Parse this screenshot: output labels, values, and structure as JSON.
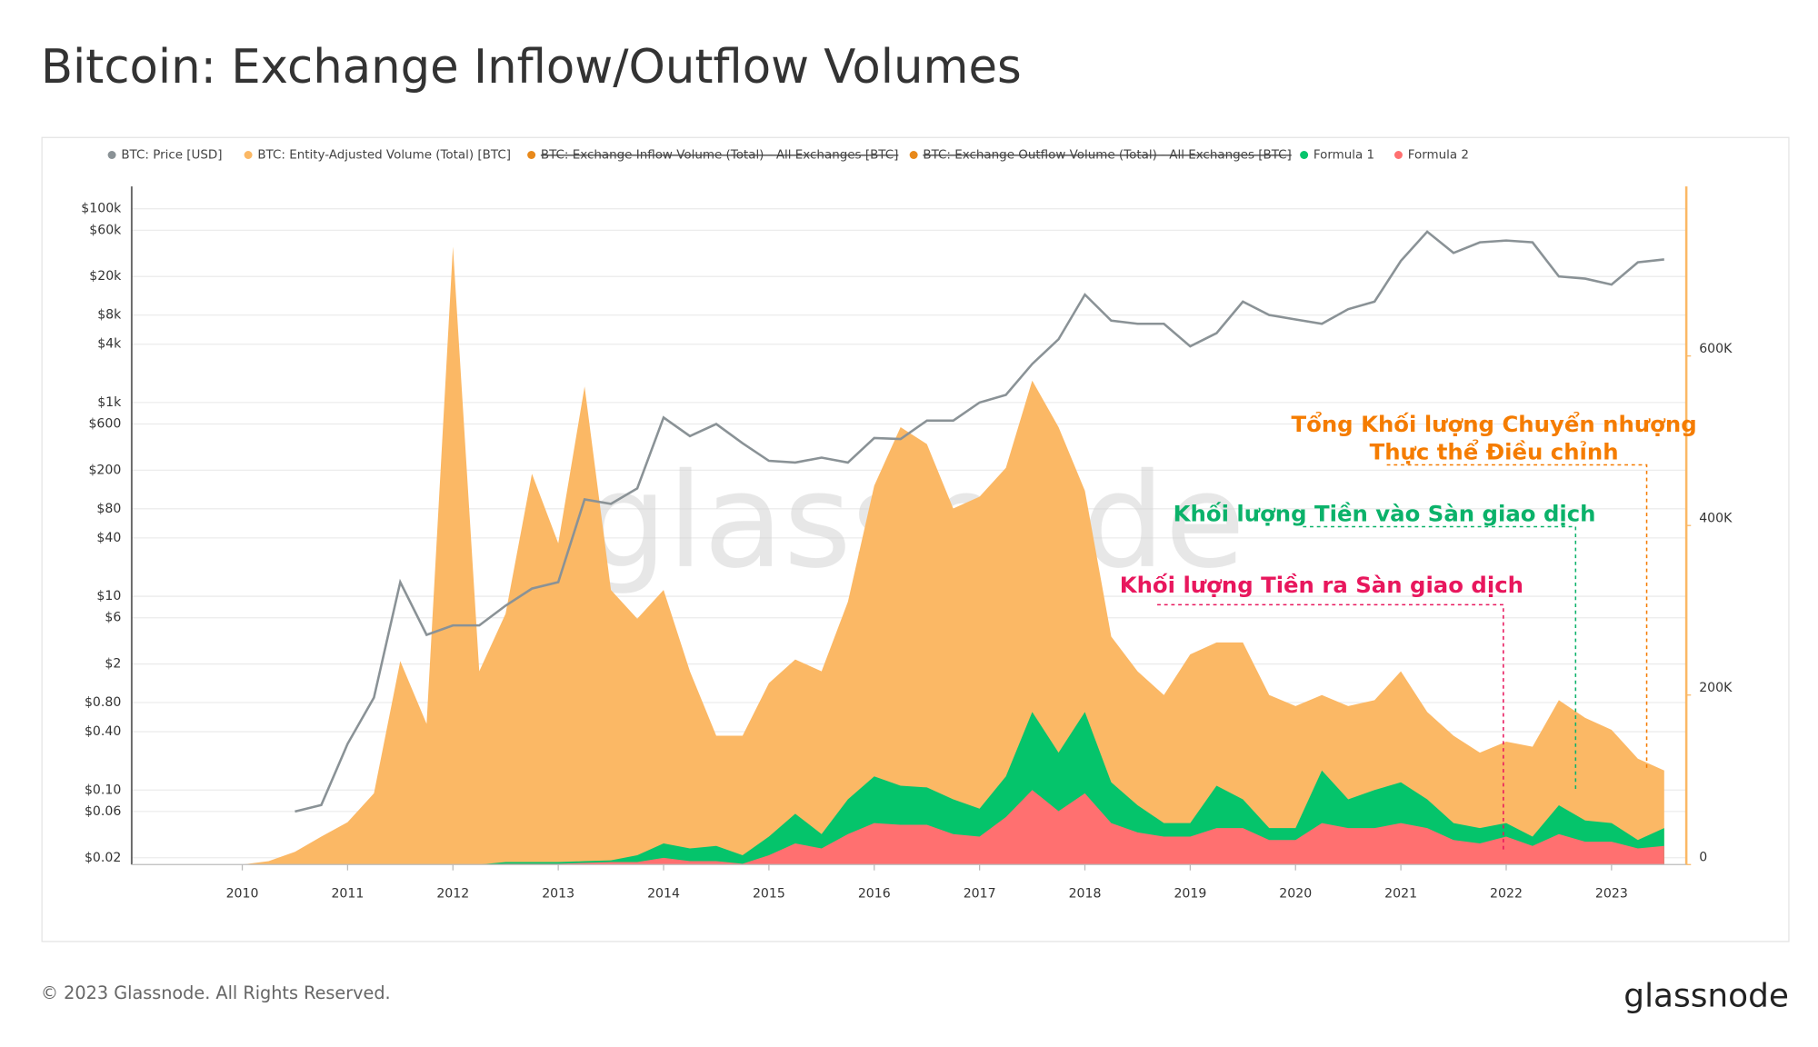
{
  "title": "Bitcoin: Exchange Inflow/Outflow Volumes",
  "footer": "© 2023 Glassnode. All Rights Reserved.",
  "logo": "glassnode",
  "chart_data": {
    "type": "area",
    "watermark": "glassnode",
    "x": [
      2010,
      2010.25,
      2010.5,
      2010.75,
      2011,
      2011.25,
      2011.5,
      2011.75,
      2012,
      2012.25,
      2012.5,
      2012.75,
      2013,
      2013.25,
      2013.5,
      2013.75,
      2014,
      2014.25,
      2014.5,
      2014.75,
      2015,
      2015.25,
      2015.5,
      2015.75,
      2016,
      2016.25,
      2016.5,
      2016.75,
      2017,
      2017.25,
      2017.5,
      2017.75,
      2018,
      2018.25,
      2018.5,
      2018.75,
      2019,
      2019.25,
      2019.5,
      2019.75,
      2020,
      2020.25,
      2020.5,
      2020.75,
      2021,
      2021.25,
      2021.5,
      2021.75,
      2022,
      2022.25,
      2022.5,
      2022.75,
      2023,
      2023.25,
      2023.5
    ],
    "xlim": [
      2008.95,
      2023.71
    ],
    "xticks": [
      2010,
      2011,
      2012,
      2013,
      2014,
      2015,
      2016,
      2017,
      2018,
      2019,
      2020,
      2021,
      2022,
      2023
    ],
    "ylim": [
      0.017,
      170000
    ],
    "log_y": true,
    "yticks": [
      {
        "value": 100000,
        "label": "$100k"
      },
      {
        "value": 60000,
        "label": "$60k"
      },
      {
        "value": 20000,
        "label": "$20k"
      },
      {
        "value": 8000,
        "label": "$8k"
      },
      {
        "value": 4000,
        "label": "$4k"
      },
      {
        "value": 1000,
        "label": "$1k"
      },
      {
        "value": 600,
        "label": "$600"
      },
      {
        "value": 200,
        "label": "$200"
      },
      {
        "value": 80,
        "label": "$80"
      },
      {
        "value": 40,
        "label": "$40"
      },
      {
        "value": 10,
        "label": "$10"
      },
      {
        "value": 6,
        "label": "$6"
      },
      {
        "value": 2,
        "label": "$2"
      },
      {
        "value": 0.8,
        "label": "$0.80"
      },
      {
        "value": 0.4,
        "label": "$0.40"
      },
      {
        "value": 0.1,
        "label": "$0.10"
      },
      {
        "value": 0.06,
        "label": "$0.06"
      },
      {
        "value": 0.02,
        "label": "$0.02"
      }
    ],
    "y2lim": [
      0,
      800000
    ],
    "y2ticks": [
      0,
      {
        "value": 200000,
        "label": "200K"
      },
      {
        "value": 400000,
        "label": "400K"
      },
      {
        "value": 600000,
        "label": "600K"
      }
    ],
    "grid": true,
    "series": [
      {
        "name": "BTC: Price [USD]",
        "color": "#8a9296",
        "type": "line",
        "axis": "y",
        "values": [
          null,
          null,
          0.06,
          0.07,
          0.3,
          0.9,
          14,
          4,
          5,
          5,
          8,
          12,
          14,
          100,
          90,
          130,
          700,
          450,
          600,
          380,
          250,
          240,
          270,
          240,
          430,
          420,
          650,
          650,
          1000,
          1200,
          2500,
          4500,
          13000,
          7000,
          6500,
          6500,
          3800,
          5200,
          11000,
          8000,
          7200,
          6500,
          9200,
          11000,
          29000,
          58000,
          35000,
          45000,
          47000,
          45000,
          20000,
          19000,
          16500,
          28000,
          30000
        ]
      },
      {
        "name": "BTC: Entity-Adjusted Volume (Total) [BTC]",
        "color": "#fbb865",
        "type": "area",
        "axis": "y2",
        "values": [
          0,
          4000,
          15000,
          33000,
          50000,
          84000,
          240000,
          166000,
          729000,
          228000,
          296000,
          461000,
          379000,
          564000,
          324000,
          290000,
          324000,
          228000,
          152000,
          152000,
          214000,
          242000,
          228000,
          310000,
          447000,
          516000,
          496000,
          420000,
          434000,
          468000,
          571000,
          516000,
          441000,
          269000,
          228000,
          200000,
          248000,
          262000,
          262000,
          200000,
          187000,
          200000,
          187000,
          194000,
          228000,
          180000,
          152000,
          132000,
          145000,
          139000,
          194000,
          173000,
          159000,
          125000,
          111000
        ]
      },
      {
        "name": "BTC: Exchange Inflow Volume (Total) - All Exchanges [BTC]",
        "color": "#e8891b",
        "hidden": true
      },
      {
        "name": "BTC: Exchange Outflow Volume (Total) - All Exchanges [BTC]",
        "color": "#e8891b",
        "hidden": true
      },
      {
        "name": "Formula 1",
        "color": "#05c46b",
        "type": "area",
        "axis": "y2",
        "values": [
          0,
          0,
          0,
          0,
          0,
          0,
          0,
          0,
          0,
          0,
          3000,
          3000,
          3000,
          4000,
          5000,
          11000,
          25000,
          19000,
          22000,
          11000,
          33000,
          60000,
          36000,
          77000,
          104000,
          93000,
          91000,
          77000,
          66000,
          104000,
          180000,
          132000,
          180000,
          97000,
          70000,
          49000,
          49000,
          93000,
          77000,
          43000,
          43000,
          111000,
          77000,
          88000,
          97000,
          77000,
          49000,
          43000,
          49000,
          33000,
          70000,
          52000,
          49000,
          29000,
          43000
        ]
      },
      {
        "name": "Formula 2",
        "color": "#ff7070",
        "type": "area",
        "axis": "y2",
        "values": [
          0,
          0,
          0,
          0,
          0,
          0,
          0,
          0,
          0,
          0,
          1000,
          1000,
          1000,
          2000,
          3000,
          3000,
          8000,
          4000,
          4000,
          1000,
          11000,
          25000,
          19000,
          36000,
          49000,
          47000,
          47000,
          36000,
          33000,
          56000,
          88000,
          63000,
          84000,
          49000,
          38000,
          33000,
          33000,
          43000,
          43000,
          29000,
          29000,
          49000,
          43000,
          43000,
          49000,
          43000,
          29000,
          25000,
          33000,
          22000,
          36000,
          27000,
          27000,
          19000,
          22000
        ]
      }
    ],
    "annotations": [
      {
        "lines": [
          "Tổng Khối lượng Chuyển nhượng",
          "Thực thể Điều chỉnh"
        ],
        "color": "#f57c00"
      },
      {
        "lines": [
          "Khối lượng Tiền vào Sàn giao dịch"
        ],
        "color": "#0bb26a"
      },
      {
        "lines": [
          "Khối lượng Tiền ra Sàn giao dịch"
        ],
        "color": "#e8175d"
      }
    ]
  }
}
